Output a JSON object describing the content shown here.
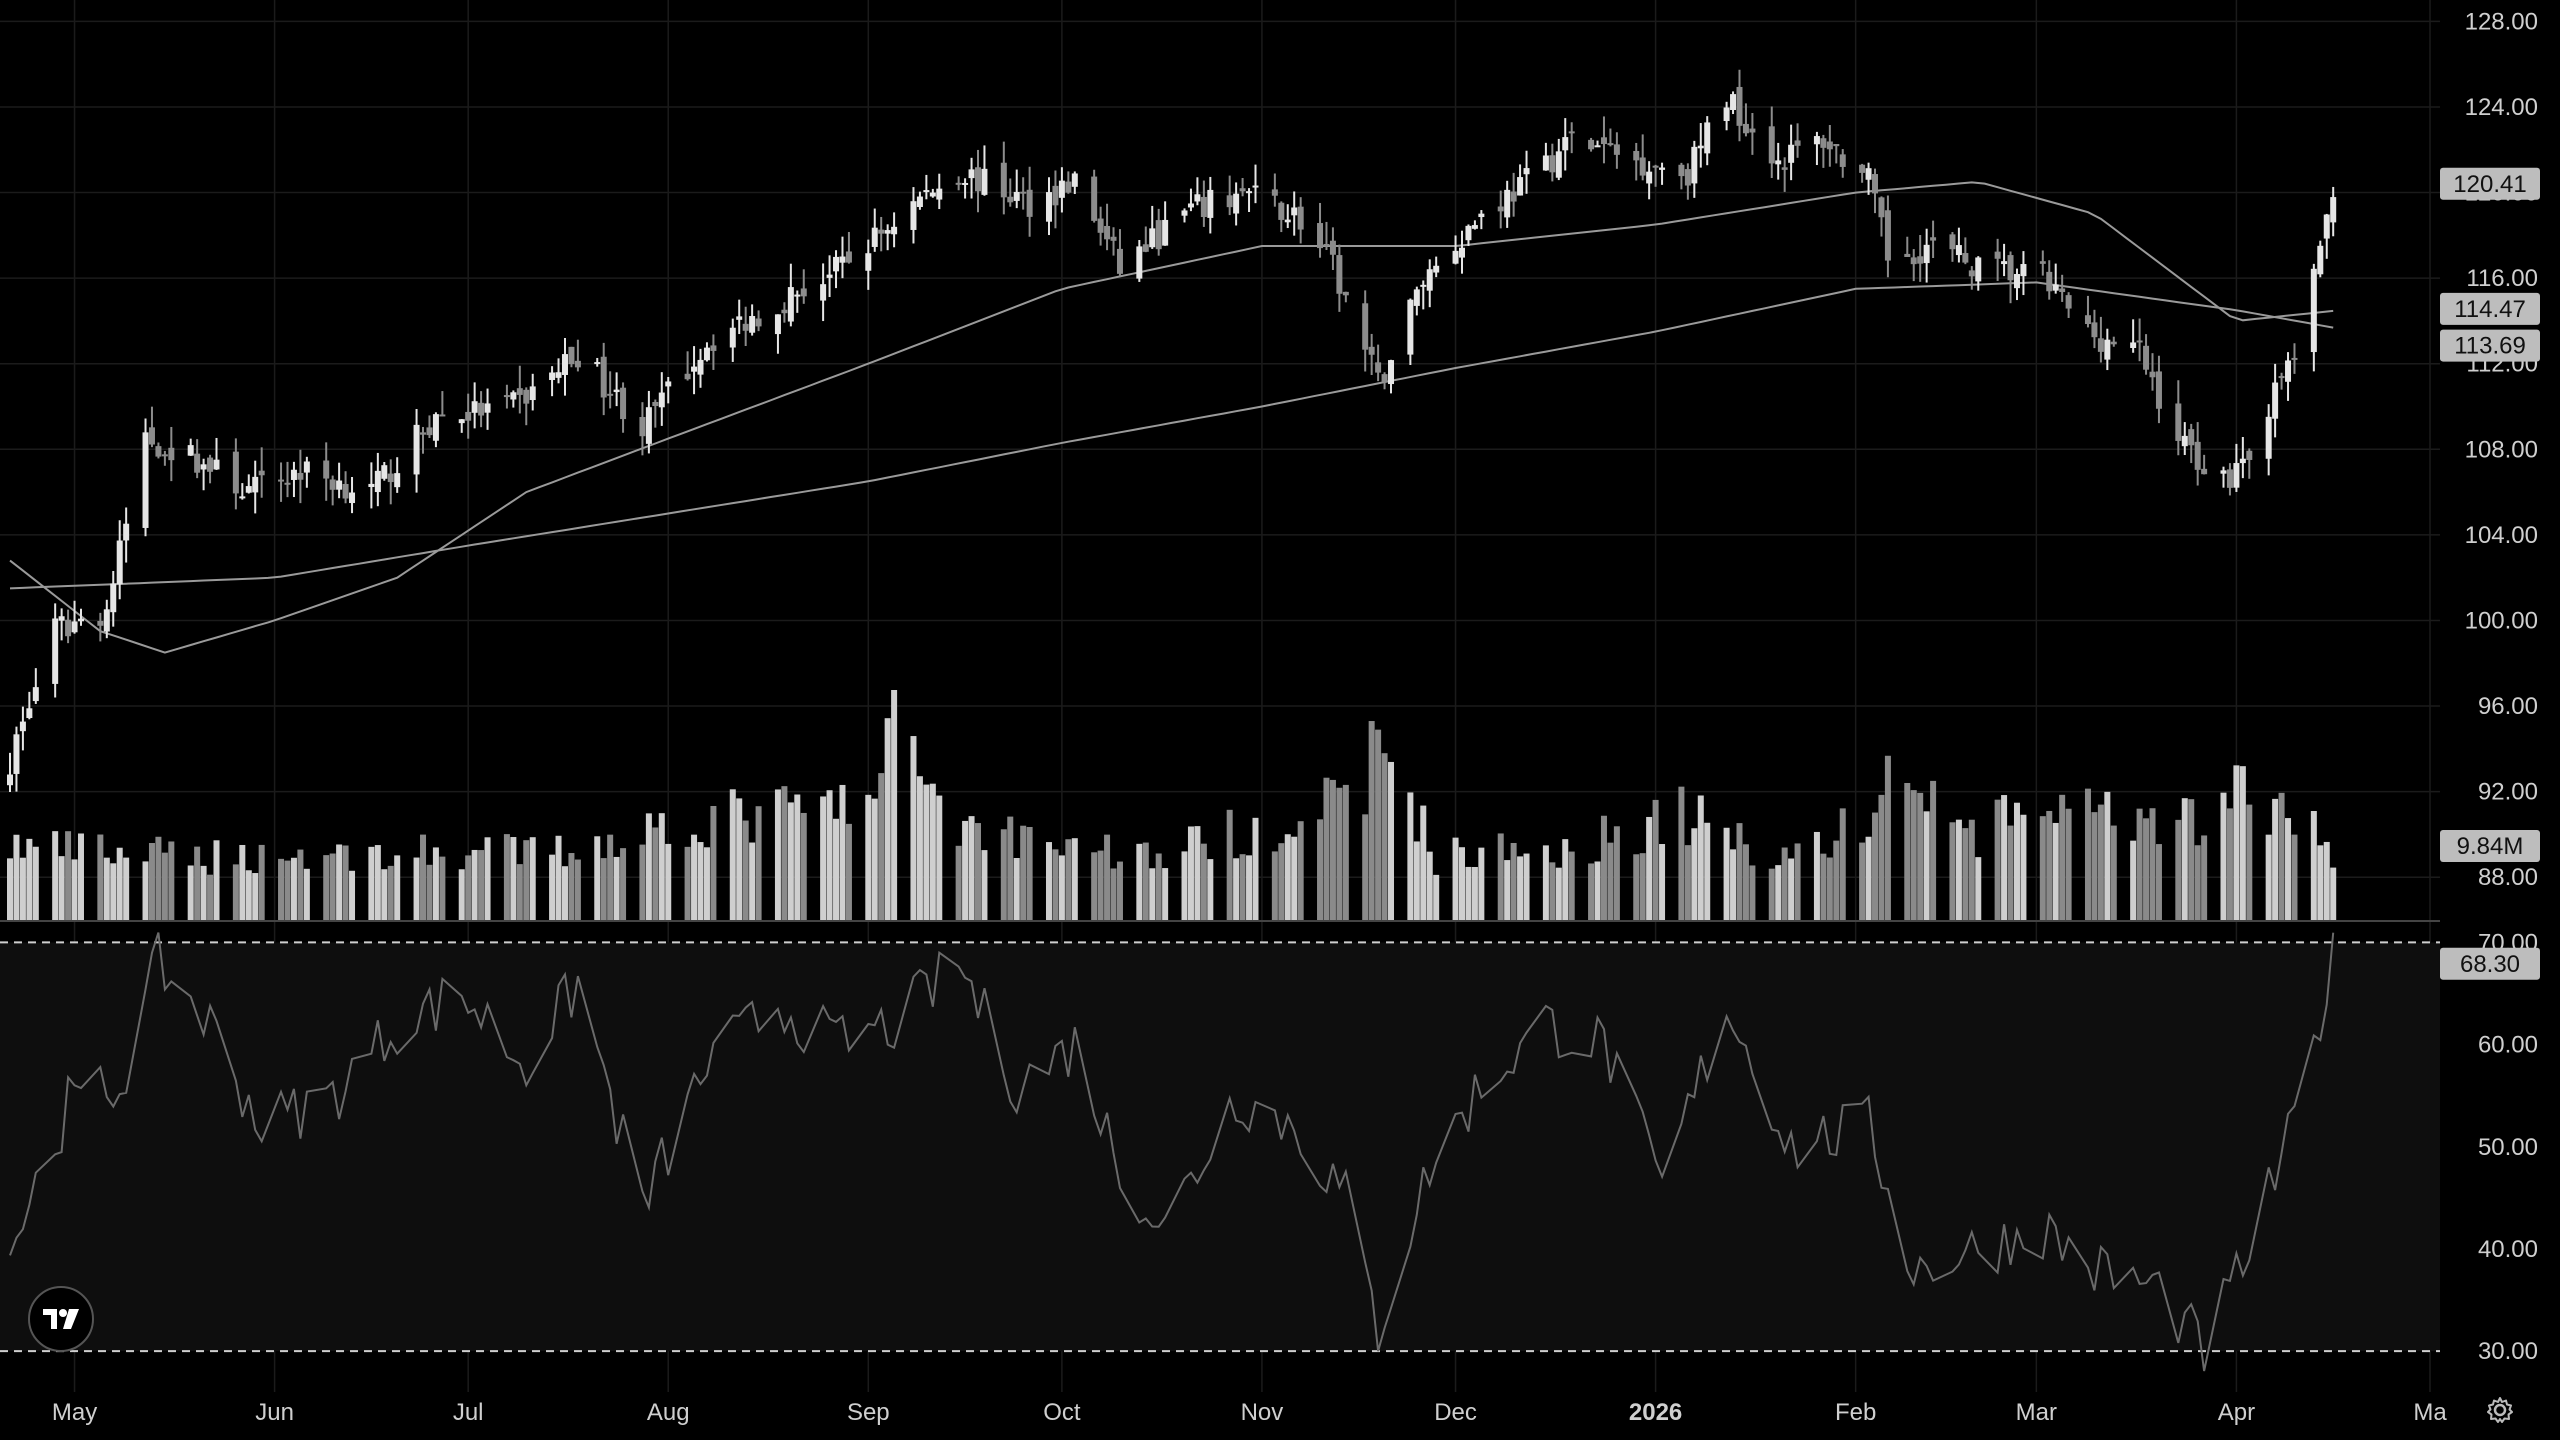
{
  "branding": {
    "logo_icon": "tradingview-logo-icon",
    "logo_text": "TV"
  },
  "settings": {
    "icon": "gear-icon"
  },
  "price_axis": {
    "ticks": [
      "128.00",
      "124.00",
      "120.00",
      "116.00",
      "112.00",
      "108.00",
      "104.00",
      "100.00",
      "96.00",
      "92.00",
      "88.00"
    ]
  },
  "rsi_axis": {
    "ticks": [
      "70.00",
      "60.00",
      "50.00",
      "40.00",
      "30.00"
    ]
  },
  "date_axis": {
    "labels": [
      "May",
      "Jun",
      "Jul",
      "Aug",
      "Sep",
      "Oct",
      "Nov",
      "Dec",
      "2026",
      "Feb",
      "Mar",
      "Apr",
      "Ma"
    ],
    "bold_label": "2026"
  },
  "tags": {
    "last_price": "120.41",
    "ma_fast": "114.47",
    "ma_slow": "113.69",
    "volume": "9.84M",
    "rsi": "68.30"
  },
  "colors": {
    "background": "#000000",
    "candle_up": "#e6e6e6",
    "candle_down": "#8c8c8c",
    "volume_up": "#cfcfcf",
    "volume_down": "#8a8a8a",
    "ma_line": "#9a9a9a",
    "rsi_line": "#6a6a6a",
    "rsi_band": "#0e0e0e",
    "grid": "#1b1b1b"
  },
  "chart_data": {
    "type": "candlestick",
    "timeframe": "daily",
    "price_range": [
      86,
      129
    ],
    "rsi_range": [
      26,
      72
    ],
    "rsi_bands": [
      30,
      70
    ],
    "price_anchors": [
      [
        "2025-04-21",
        93.5
      ],
      [
        "2025-04-28",
        99.5
      ],
      [
        "2025-05-06",
        100.5
      ],
      [
        "2025-05-12",
        108.5
      ],
      [
        "2025-05-20",
        107.5
      ],
      [
        "2025-05-28",
        106.0
      ],
      [
        "2025-06-05",
        107.0
      ],
      [
        "2025-06-16",
        106.0
      ],
      [
        "2025-06-26",
        109.5
      ],
      [
        "2025-07-08",
        110.0
      ],
      [
        "2025-07-18",
        112.5
      ],
      [
        "2025-07-28",
        109.0
      ],
      [
        "2025-08-07",
        113.0
      ],
      [
        "2025-08-19",
        115.0
      ],
      [
        "2025-08-28",
        116.5
      ],
      [
        "2025-09-08",
        119.5
      ],
      [
        "2025-09-15",
        121.0
      ],
      [
        "2025-09-26",
        119.5
      ],
      [
        "2025-10-03",
        120.5
      ],
      [
        "2025-10-10",
        116.5
      ],
      [
        "2025-10-20",
        119.0
      ],
      [
        "2025-10-29",
        120.0
      ],
      [
        "2025-11-06",
        119.0
      ],
      [
        "2025-11-12",
        116.5
      ],
      [
        "2025-11-19",
        111.0
      ],
      [
        "2025-11-26",
        116.0
      ],
      [
        "2025-12-05",
        119.0
      ],
      [
        "2025-12-12",
        120.5
      ],
      [
        "2025-12-19",
        122.5
      ],
      [
        "2025-12-29",
        121.5
      ],
      [
        "2026-01-06",
        121.0
      ],
      [
        "2026-01-12",
        124.5
      ],
      [
        "2026-01-20",
        121.5
      ],
      [
        "2026-01-27",
        122.5
      ],
      [
        "2026-02-03",
        120.5
      ],
      [
        "2026-02-06",
        117.0
      ],
      [
        "2026-02-13",
        117.5
      ],
      [
        "2026-02-20",
        116.5
      ],
      [
        "2026-03-02",
        116.0
      ],
      [
        "2026-03-09",
        113.5
      ],
      [
        "2026-03-17",
        112.5
      ],
      [
        "2026-03-23",
        108.5
      ],
      [
        "2026-03-30",
        106.5
      ],
      [
        "2026-04-03",
        108.0
      ],
      [
        "2026-04-10",
        112.5
      ],
      [
        "2026-04-14",
        117.0
      ],
      [
        "2026-04-16",
        120.41
      ]
    ],
    "ma_fast_anchors": [
      [
        "2025-04-21",
        102.8
      ],
      [
        "2025-05-05",
        99.5
      ],
      [
        "2025-05-15",
        98.5
      ],
      [
        "2025-06-01",
        100.0
      ],
      [
        "2025-06-20",
        102.0
      ],
      [
        "2025-07-10",
        106.0
      ],
      [
        "2025-08-01",
        108.5
      ],
      [
        "2025-09-01",
        112.0
      ],
      [
        "2025-10-01",
        115.5
      ],
      [
        "2025-11-01",
        117.5
      ],
      [
        "2025-12-01",
        117.5
      ],
      [
        "2026-01-01",
        118.5
      ],
      [
        "2026-02-01",
        120.0
      ],
      [
        "2026-02-20",
        120.5
      ],
      [
        "2026-03-10",
        119.0
      ],
      [
        "2026-04-01",
        114.0
      ],
      [
        "2026-04-16",
        114.47
      ]
    ],
    "ma_slow_anchors": [
      [
        "2025-04-21",
        101.5
      ],
      [
        "2025-06-01",
        102.0
      ],
      [
        "2025-07-01",
        103.5
      ],
      [
        "2025-08-01",
        105.0
      ],
      [
        "2025-09-01",
        106.5
      ],
      [
        "2025-10-01",
        108.3
      ],
      [
        "2025-11-01",
        110.0
      ],
      [
        "2025-12-01",
        111.8
      ],
      [
        "2026-01-01",
        113.5
      ],
      [
        "2026-02-01",
        115.5
      ],
      [
        "2026-03-01",
        115.8
      ],
      [
        "2026-04-01",
        114.5
      ],
      [
        "2026-04-16",
        113.69
      ]
    ],
    "volume_anchors": [
      [
        "2025-04-21",
        0.35
      ],
      [
        "2025-05-15",
        0.3
      ],
      [
        "2025-07-15",
        0.32
      ],
      [
        "2025-08-01",
        0.45
      ],
      [
        "2025-09-02",
        0.55
      ],
      [
        "2025-09-05",
        0.95
      ],
      [
        "2025-09-15",
        0.45
      ],
      [
        "2025-10-15",
        0.3
      ],
      [
        "2025-11-14",
        0.55
      ],
      [
        "2025-11-20",
        0.85
      ],
      [
        "2025-11-28",
        0.3
      ],
      [
        "2025-12-20",
        0.35
      ],
      [
        "2026-01-05",
        0.5
      ],
      [
        "2026-01-20",
        0.3
      ],
      [
        "2026-02-03",
        0.45
      ],
      [
        "2026-02-06",
        0.7
      ],
      [
        "2026-02-20",
        0.4
      ],
      [
        "2026-03-03",
        0.55
      ],
      [
        "2026-03-20",
        0.4
      ],
      [
        "2026-04-02",
        0.6
      ],
      [
        "2026-04-16",
        0.35
      ]
    ],
    "rsi_anchors": [
      [
        "2025-04-21",
        40
      ],
      [
        "2025-04-30",
        54
      ],
      [
        "2025-05-08",
        56
      ],
      [
        "2025-05-14",
        68
      ],
      [
        "2025-05-22",
        62
      ],
      [
        "2025-05-30",
        52
      ],
      [
        "2025-06-10",
        55
      ],
      [
        "2025-06-20",
        62
      ],
      [
        "2025-06-30",
        65
      ],
      [
        "2025-07-10",
        58
      ],
      [
        "2025-07-18",
        66
      ],
      [
        "2025-07-28",
        44
      ],
      [
        "2025-08-07",
        58
      ],
      [
        "2025-08-18",
        64
      ],
      [
        "2025-08-27",
        60
      ],
      [
        "2025-09-05",
        62
      ],
      [
        "2025-09-15",
        68
      ],
      [
        "2025-09-24",
        56
      ],
      [
        "2025-10-03",
        60
      ],
      [
        "2025-10-10",
        48
      ],
      [
        "2025-10-17",
        42
      ],
      [
        "2025-10-28",
        55
      ],
      [
        "2025-11-06",
        52
      ],
      [
        "2025-11-14",
        45
      ],
      [
        "2025-11-19",
        32
      ],
      [
        "2025-11-27",
        48
      ],
      [
        "2025-12-05",
        56
      ],
      [
        "2025-12-15",
        62
      ],
      [
        "2025-12-24",
        60
      ],
      [
        "2026-01-02",
        46
      ],
      [
        "2026-01-12",
        64
      ],
      [
        "2026-01-22",
        50
      ],
      [
        "2026-02-03",
        52
      ],
      [
        "2026-02-10",
        38
      ],
      [
        "2026-02-20",
        40
      ],
      [
        "2026-03-02",
        42
      ],
      [
        "2026-03-10",
        38
      ],
      [
        "2026-03-20",
        36
      ],
      [
        "2026-03-27",
        30
      ],
      [
        "2026-04-03",
        40
      ],
      [
        "2026-04-10",
        52
      ],
      [
        "2026-04-16",
        68.3
      ]
    ],
    "x_range": [
      "2025-04-21",
      "2026-05-01"
    ],
    "months": [
      [
        "2025-05-01",
        "May"
      ],
      [
        "2025-06-01",
        "Jun"
      ],
      [
        "2025-07-01",
        "Jul"
      ],
      [
        "2025-08-01",
        "Aug"
      ],
      [
        "2025-09-01",
        "Sep"
      ],
      [
        "2025-10-01",
        "Oct"
      ],
      [
        "2025-11-01",
        "Nov"
      ],
      [
        "2025-12-01",
        "Dec"
      ],
      [
        "2026-01-01",
        "2026"
      ],
      [
        "2026-02-01",
        "Feb"
      ],
      [
        "2026-03-01",
        "Mar"
      ],
      [
        "2026-04-01",
        "Apr"
      ],
      [
        "2026-05-01",
        "Ma"
      ]
    ],
    "grid": true,
    "legend": "none"
  }
}
